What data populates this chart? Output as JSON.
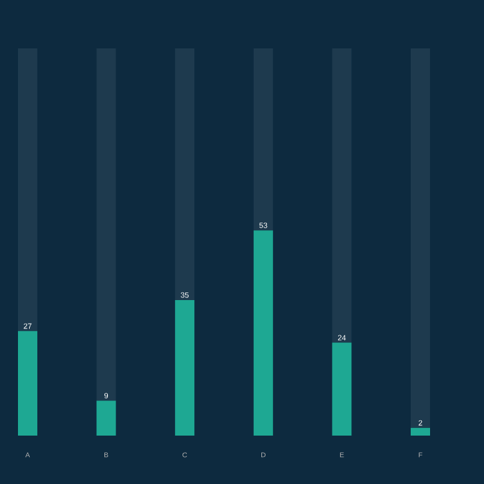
{
  "chart_data": {
    "type": "bar",
    "stacked": true,
    "categories": [
      "A",
      "B",
      "C",
      "D",
      "E",
      "F"
    ],
    "series": [
      {
        "color": "#1ea893",
        "values": [
          27,
          9,
          35,
          53,
          24,
          2
        ],
        "value_labels": [
          "27",
          "9",
          "35",
          "53",
          "24",
          "2"
        ]
      },
      {
        "color": "#1e3a4e",
        "values": [
          73,
          91,
          65,
          47,
          76,
          98
        ]
      }
    ],
    "ylim": [
      0,
      100
    ]
  }
}
